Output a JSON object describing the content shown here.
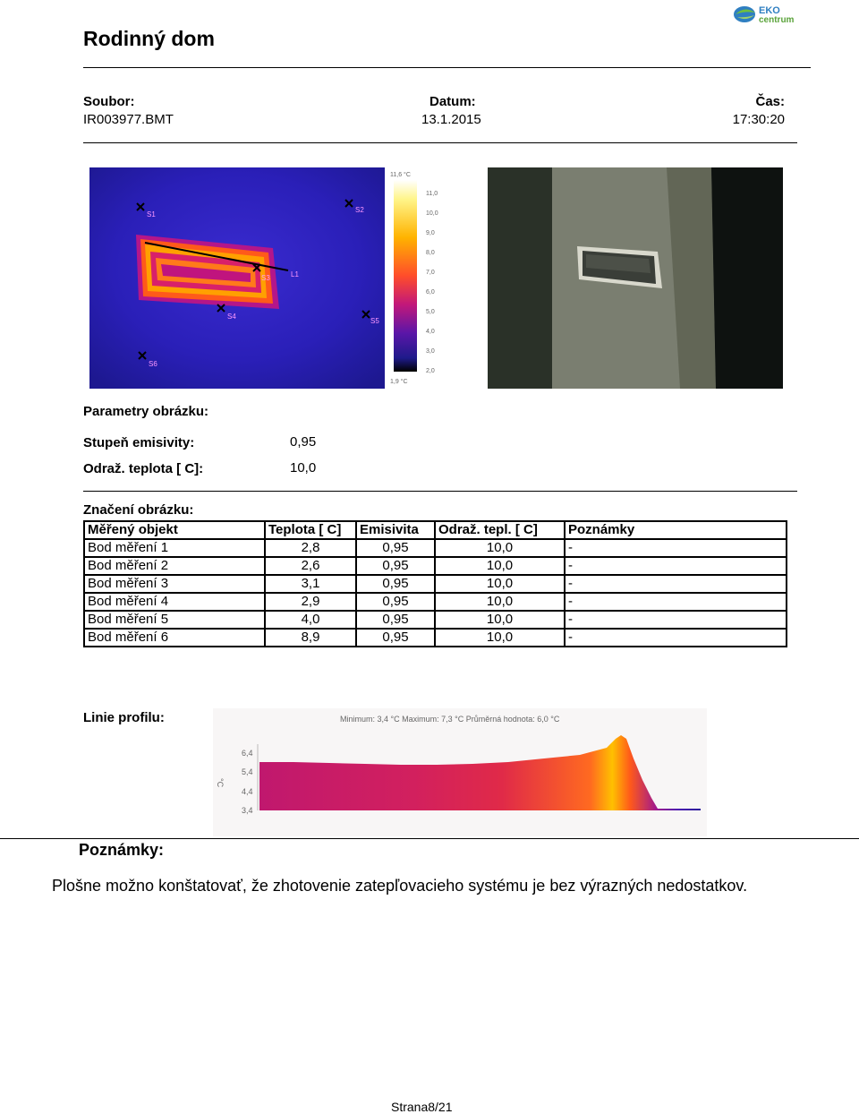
{
  "header": {
    "title": "Rodinný dom",
    "logo_text": "EKO centrum"
  },
  "file_info": {
    "file_label": "Soubor:",
    "file_value": "IR003977.BMT",
    "date_label": "Datum:",
    "date_value": "13.1.2015",
    "time_label": "Čas:",
    "time_value": "17:30:20"
  },
  "thermal": {
    "scale_max": "11,6 °C",
    "scale_min": "1,9 °C",
    "ticks": [
      "11,0",
      "10,0",
      "9,0",
      "8,0",
      "7,0",
      "6,0",
      "5,0",
      "4,0",
      "3,0",
      "2,0"
    ],
    "markers": [
      "S1",
      "S2",
      "S3",
      "S4",
      "S5",
      "S6"
    ],
    "line_label": "L1"
  },
  "params": {
    "section_label": "Parametry obrázku:",
    "emissivity_label": "Stupeň emisivity:",
    "emissivity_value": "0,95",
    "refl_temp_label": "Odraž. teplota [ C]:",
    "refl_temp_value": "10,0"
  },
  "marks": {
    "section_label": "Značení obrázku:",
    "headers": [
      "Měřený objekt",
      "Teplota [ C]",
      "Emisivita",
      "Odraž. tepl. [ C]",
      "Poznámky"
    ],
    "rows": [
      {
        "obj": "Bod měření 1",
        "temp": "2,8",
        "emis": "0,95",
        "refl": "10,0",
        "note": "-"
      },
      {
        "obj": "Bod měření 2",
        "temp": "2,6",
        "emis": "0,95",
        "refl": "10,0",
        "note": "-"
      },
      {
        "obj": "Bod měření 3",
        "temp": "3,1",
        "emis": "0,95",
        "refl": "10,0",
        "note": "-"
      },
      {
        "obj": "Bod měření 4",
        "temp": "2,9",
        "emis": "0,95",
        "refl": "10,0",
        "note": "-"
      },
      {
        "obj": "Bod měření 5",
        "temp": "4,0",
        "emis": "0,95",
        "refl": "10,0",
        "note": "-"
      },
      {
        "obj": "Bod měření 6",
        "temp": "8,9",
        "emis": "0,95",
        "refl": "10,0",
        "note": "-"
      }
    ]
  },
  "profile": {
    "section_label": "Linie profilu:",
    "stats": "Minimum: 3,4 °C Maximum: 7,3 °C Průměrná hodnota: 6,0 °C",
    "unit": "°C",
    "y_ticks": [
      "6,4",
      "5,4",
      "4,4",
      "3,4"
    ]
  },
  "notes": {
    "title": "Poznámky:",
    "text": "Plošne možno konštatovať, že zhotovenie zatepľovacieho systému je bez výrazných nedostatkov."
  },
  "footer": {
    "page": "Strana8/21"
  }
}
